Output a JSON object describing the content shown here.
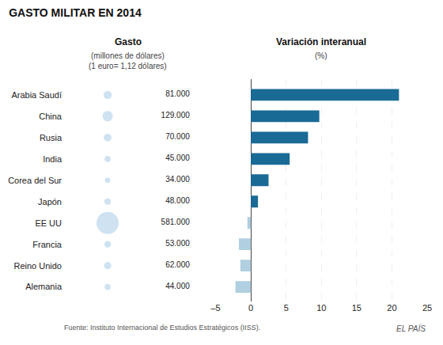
{
  "title": "GASTO MILITAR EN 2014",
  "annotations": [
    "Fuente: Instituto Internacional de Estudios Estratégicos (IISS).",
    "EL PAÍS"
  ],
  "chart_data": [
    {
      "type": "bubble",
      "title": "Gasto",
      "subtitle": [
        "(millones de dólares)",
        "(1 euro= 1,12 dólares)"
      ],
      "categories": [
        "Arabia Saudí",
        "China",
        "Rusia",
        "India",
        "Corea del Sur",
        "Japón",
        "EE UU",
        "Francia",
        "Reino Unido",
        "Alemania"
      ],
      "values": [
        81000,
        129000,
        70000,
        45000,
        34000,
        48000,
        581000,
        53000,
        62000,
        44000
      ],
      "value_labels": [
        "81.000",
        "129.000",
        "70.000",
        "45.000",
        "34.000",
        "48.000",
        "581.000",
        "53.000",
        "62.000",
        "44.000"
      ],
      "data_labels": true,
      "color": "#c9dff0",
      "tick_labels": "y"
    },
    {
      "type": "bar",
      "orientation": "horizontal",
      "title": "Variación interanual",
      "subtitle": "(%)",
      "categories": [
        "Arabia Saudí",
        "China",
        "Rusia",
        "India",
        "Corea del Sur",
        "Japón",
        "EE UU",
        "Francia",
        "Reino Unido",
        "Alemania"
      ],
      "values": [
        21.0,
        9.7,
        8.1,
        5.5,
        2.5,
        1.0,
        -0.5,
        -1.7,
        -1.5,
        -2.2
      ],
      "colors": [
        "#1a6a96",
        "#1a6a96",
        "#1a6a96",
        "#1a6a96",
        "#1a6a96",
        "#1a6a96",
        "#b0cfe0",
        "#b0cfe0",
        "#b0cfe0",
        "#b0cfe0"
      ],
      "xlim": [
        -5,
        25
      ],
      "xticks": [
        {
          "value": -5,
          "label": "–5"
        },
        0,
        5,
        10,
        15,
        20,
        25
      ],
      "grid": true,
      "tick_labels": "x"
    }
  ]
}
